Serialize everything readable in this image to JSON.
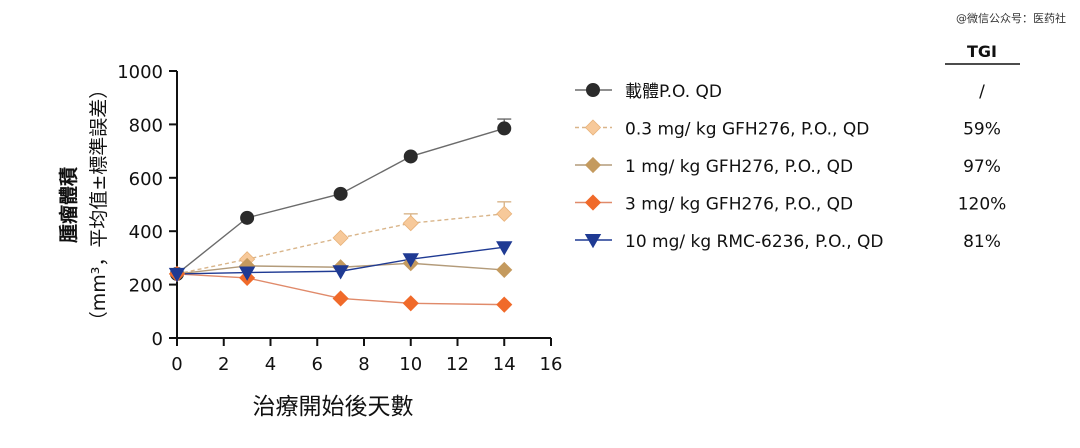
{
  "watermark": "@微信公众号：医药社",
  "chart_data": {
    "type": "line",
    "xlabel": "治療開始後天數",
    "ylabel_main": "腫瘤體積",
    "ylabel_sub": "（mm³，平均值±標準誤差）",
    "xlim": [
      0,
      16
    ],
    "ylim": [
      0,
      1000
    ],
    "xticks": [
      0,
      2,
      4,
      6,
      8,
      10,
      12,
      14,
      16
    ],
    "yticks": [
      0,
      200,
      400,
      600,
      800,
      1000
    ],
    "grid": false,
    "legend_position": "right",
    "tgi_header": "TGI",
    "series": [
      {
        "name": "載體P.O. QD",
        "tgi": "/",
        "marker": "circle",
        "color": "#2b2b2b",
        "line_style": "solid",
        "line_color": "#6b6b6b",
        "x": [
          0,
          3,
          7,
          10,
          14
        ],
        "y": [
          240,
          450,
          540,
          680,
          785
        ],
        "err": [
          0,
          0,
          0,
          0,
          35
        ]
      },
      {
        "name": "0.3 mg/ kg GFH276, P.O., QD",
        "tgi": "59%",
        "marker": "diamond",
        "color": "#f7c99a",
        "line_style": "dashed",
        "line_color": "#d9b58a",
        "x": [
          0,
          3,
          7,
          10,
          14
        ],
        "y": [
          240,
          295,
          375,
          430,
          465
        ],
        "err": [
          0,
          0,
          0,
          35,
          45
        ]
      },
      {
        "name": "1 mg/ kg GFH276, P.O., QD",
        "tgi": "97%",
        "marker": "diamond",
        "color": "#c49a5e",
        "line_style": "solid",
        "line_color": "#b39b7a",
        "x": [
          0,
          3,
          7,
          10,
          14
        ],
        "y": [
          240,
          270,
          265,
          280,
          255
        ],
        "err": [
          0,
          0,
          0,
          0,
          0
        ]
      },
      {
        "name": "3 mg/ kg GFH276, P.O., QD",
        "tgi": "120%",
        "marker": "diamond",
        "color": "#f06a2a",
        "line_style": "solid",
        "line_color": "#e08a6a",
        "x": [
          0,
          3,
          7,
          10,
          14
        ],
        "y": [
          240,
          225,
          148,
          130,
          125
        ],
        "err": [
          0,
          0,
          0,
          0,
          0
        ]
      },
      {
        "name": "10 mg/ kg RMC-6236, P.O., QD",
        "tgi": "81%",
        "marker": "triangle-down",
        "color": "#1f3a93",
        "line_style": "solid",
        "line_color": "#1f3a93",
        "x": [
          0,
          3,
          7,
          10,
          14
        ],
        "y": [
          240,
          245,
          250,
          295,
          340
        ],
        "err": [
          0,
          0,
          0,
          0,
          0
        ]
      }
    ]
  }
}
